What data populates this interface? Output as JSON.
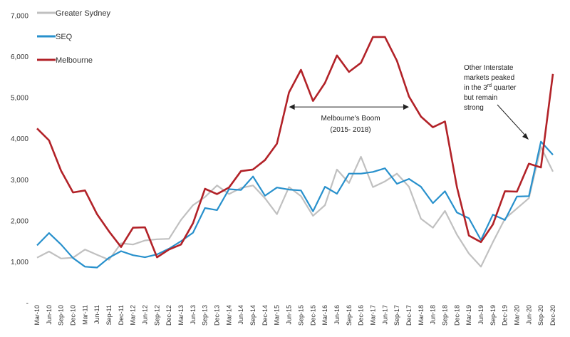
{
  "chart_data": {
    "type": "line",
    "title": "",
    "xlabel": "",
    "ylabel": "",
    "ylim": [
      0,
      7000
    ],
    "y_ticks": [
      0,
      1000,
      2000,
      3000,
      4000,
      5000,
      6000,
      7000
    ],
    "y_tick_labels": [
      "-",
      "1,000",
      "2,000",
      "3,000",
      "4,000",
      "5,000",
      "6,000",
      "7,000"
    ],
    "grid": false,
    "legend_position": "top-left",
    "x": [
      "Mar-10",
      "Jun-10",
      "Sep-10",
      "Dec-10",
      "Mar-11",
      "Jun-11",
      "Sep-11",
      "Dec-11",
      "Mar-12",
      "Jun-12",
      "Sep-12",
      "Dec-12",
      "Mar-13",
      "Jun-13",
      "Sep-13",
      "Dec-13",
      "Mar-14",
      "Jun-14",
      "Sep-14",
      "Dec-14",
      "Mar-15",
      "Jun-15",
      "Sep-15",
      "Dec-15",
      "Mar-16",
      "Jun-16",
      "Sep-16",
      "Dec-16",
      "Mar-17",
      "Jun-17",
      "Sep-17",
      "Dec-17",
      "Mar-18",
      "Jun-18",
      "Sep-18",
      "Dec-18",
      "Mar-19",
      "Jun-19",
      "Sep-19",
      "Dec-19",
      "Mar-20",
      "Jun-20",
      "Sep-20",
      "Dec-20"
    ],
    "series": [
      {
        "name": "Greater Sydney",
        "color": "#c0c0c0",
        "values": [
          1100,
          1250,
          1080,
          1100,
          1300,
          1170,
          1050,
          1450,
          1420,
          1520,
          1550,
          1560,
          2020,
          2380,
          2580,
          2860,
          2650,
          2800,
          2860,
          2550,
          2160,
          2820,
          2600,
          2120,
          2380,
          3250,
          2920,
          3560,
          2820,
          2960,
          3150,
          2830,
          2050,
          1830,
          2240,
          1660,
          1200,
          880,
          1480,
          2050,
          2300,
          2550,
          3800,
          3200
        ]
      },
      {
        "name": "SEQ",
        "color": "#2790cc",
        "values": [
          1400,
          1700,
          1420,
          1090,
          880,
          860,
          1100,
          1260,
          1160,
          1110,
          1180,
          1320,
          1500,
          1710,
          2310,
          2260,
          2770,
          2750,
          3080,
          2610,
          2810,
          2760,
          2740,
          2230,
          2830,
          2660,
          3150,
          3150,
          3190,
          3280,
          2900,
          3020,
          2830,
          2430,
          2720,
          2200,
          2060,
          1530,
          2150,
          2020,
          2590,
          2600,
          3930,
          3610
        ]
      },
      {
        "name": "Melbourne",
        "color": "#b22228",
        "values": [
          4250,
          3960,
          3220,
          2690,
          2740,
          2160,
          1740,
          1360,
          1830,
          1840,
          1110,
          1300,
          1420,
          1940,
          2780,
          2650,
          2810,
          3210,
          3250,
          3480,
          3880,
          5130,
          5680,
          4920,
          5360,
          6030,
          5630,
          5850,
          6480,
          6480,
          5900,
          5030,
          4540,
          4280,
          4420,
          2820,
          1640,
          1480,
          1910,
          2720,
          2710,
          3390,
          3300,
          5580
        ]
      }
    ],
    "annotations": {
      "boom_line1": "Melbourne's Boom",
      "boom_line2": "(2015- 2018)",
      "boom_from": "Jun-15",
      "boom_to": "Dec-17",
      "interstate_lines": [
        "Other Interstate",
        "markets peaked",
        "in the 3",
        "but remain",
        "strong"
      ],
      "interstate_sup_base": "in the 3",
      "interstate_sup": "rd",
      "interstate_sup_tail": " quarter"
    }
  }
}
